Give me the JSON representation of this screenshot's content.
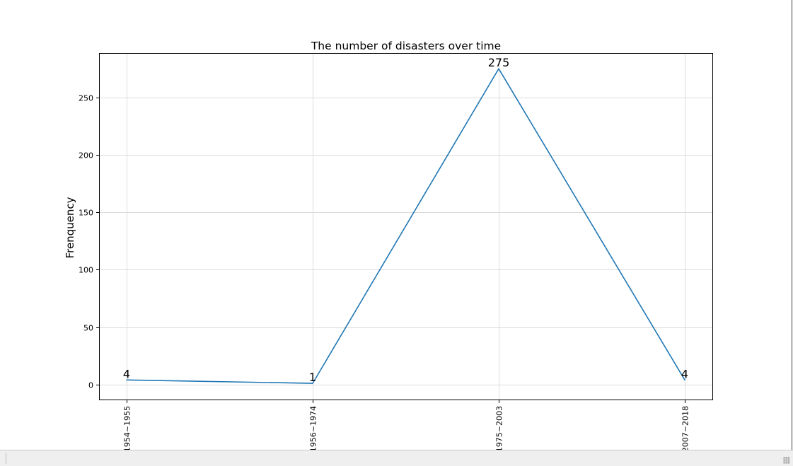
{
  "chart_data": {
    "type": "line",
    "title": "The number of disasters over time",
    "xlabel": "",
    "ylabel": "Frenquency",
    "categories": [
      "1954~1955",
      "1956~1974",
      "1975~2003",
      "2007~2018"
    ],
    "series": [
      {
        "values": [
          4,
          1,
          275,
          4
        ]
      }
    ],
    "data_labels": [
      "4",
      "1",
      "275",
      "4"
    ],
    "yticks": [
      0,
      50,
      100,
      150,
      200,
      250
    ],
    "ylim": [
      -13.7,
      288.7
    ],
    "grid": true,
    "legend": "none",
    "line_color": "#1f77b4"
  }
}
